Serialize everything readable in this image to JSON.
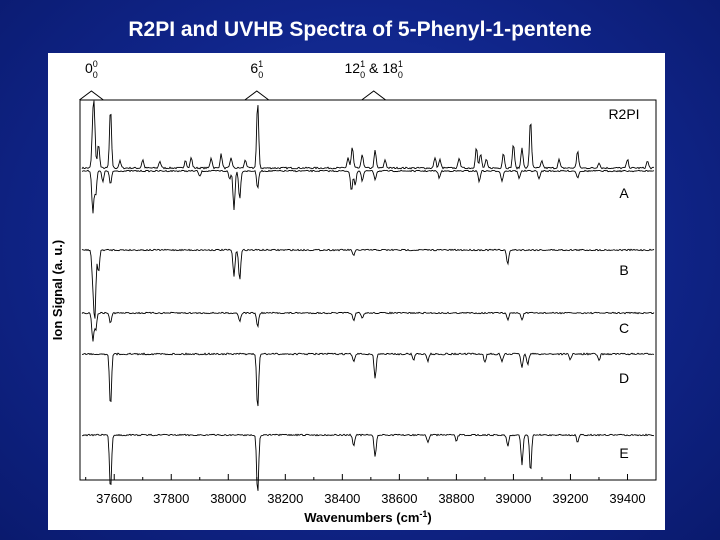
{
  "title": "R2PI and UVHB Spectra of 5-Phenyl-1-pentene",
  "colors": {
    "background": "#10258a",
    "title_text": "#ffffff",
    "trace": "#000000",
    "panel": "#ffffff"
  },
  "chart_data": {
    "type": "line",
    "title": "R2PI and UVHB Spectra of 5-Phenyl-1-pentene",
    "xlabel": "Wavenumbers (cm",
    "xlabel_sup": "-1",
    "xlabel_close": ")",
    "ylabel": "Ion Signal (a. u.)",
    "xlim": [
      37480,
      39500
    ],
    "x_ticks": [
      37600,
      37800,
      38000,
      38200,
      38400,
      38600,
      38800,
      39000,
      39200,
      39400
    ],
    "grid": false,
    "annotations": [
      {
        "main": "0",
        "sup": "0",
        "sub": "0",
        "x": 37520
      },
      {
        "main": "6",
        "sup": "1",
        "sub": "0",
        "x": 38100
      },
      {
        "main": "12",
        "sup": "1",
        "sub": "0",
        "text2": " & 18",
        "sup2": "1",
        "sub2": "0",
        "x": 38510
      }
    ],
    "series": [
      {
        "name": "R2PI",
        "direction": "up",
        "noise": 0.012,
        "peaks": [
          [
            37525,
            0.55
          ],
          [
            37530,
            0.7
          ],
          [
            37545,
            0.35
          ],
          [
            37587,
            0.85
          ],
          [
            37620,
            0.1
          ],
          [
            37700,
            0.12
          ],
          [
            37760,
            0.1
          ],
          [
            37850,
            0.12
          ],
          [
            37870,
            0.15
          ],
          [
            37940,
            0.15
          ],
          [
            37975,
            0.2
          ],
          [
            38010,
            0.15
          ],
          [
            38060,
            0.12
          ],
          [
            38103,
            0.95
          ],
          [
            38420,
            0.15
          ],
          [
            38435,
            0.3
          ],
          [
            38470,
            0.2
          ],
          [
            38515,
            0.25
          ],
          [
            38550,
            0.12
          ],
          [
            38725,
            0.15
          ],
          [
            38742,
            0.12
          ],
          [
            38810,
            0.15
          ],
          [
            38870,
            0.3
          ],
          [
            38885,
            0.2
          ],
          [
            38905,
            0.12
          ],
          [
            38965,
            0.22
          ],
          [
            39000,
            0.35
          ],
          [
            39030,
            0.3
          ],
          [
            39060,
            0.7
          ],
          [
            39100,
            0.1
          ],
          [
            39160,
            0.12
          ],
          [
            39225,
            0.25
          ],
          [
            39300,
            0.08
          ],
          [
            39400,
            0.12
          ],
          [
            39470,
            0.1
          ]
        ]
      },
      {
        "name": "A",
        "direction": "down",
        "noise": 0.01,
        "peaks": [
          [
            37525,
            0.6
          ],
          [
            37535,
            0.35
          ],
          [
            37560,
            0.15
          ],
          [
            37587,
            0.2
          ],
          [
            37900,
            0.08
          ],
          [
            38005,
            0.12
          ],
          [
            38020,
            0.55
          ],
          [
            38040,
            0.4
          ],
          [
            38103,
            0.25
          ],
          [
            38432,
            0.3
          ],
          [
            38445,
            0.2
          ],
          [
            38470,
            0.15
          ],
          [
            38515,
            0.12
          ],
          [
            38740,
            0.1
          ],
          [
            38880,
            0.15
          ],
          [
            38960,
            0.15
          ],
          [
            39020,
            0.1
          ],
          [
            39090,
            0.12
          ],
          [
            39225,
            0.1
          ]
        ]
      },
      {
        "name": "B",
        "direction": "down",
        "noise": 0.01,
        "peaks": [
          [
            37525,
            0.4
          ],
          [
            37532,
            0.9
          ],
          [
            37545,
            0.3
          ],
          [
            38020,
            0.35
          ],
          [
            38040,
            0.4
          ],
          [
            38440,
            0.08
          ],
          [
            38980,
            0.2
          ]
        ]
      },
      {
        "name": "C",
        "direction": "down",
        "noise": 0.01,
        "peaks": [
          [
            37525,
            0.4
          ],
          [
            37535,
            0.25
          ],
          [
            37587,
            0.15
          ],
          [
            38040,
            0.12
          ],
          [
            38103,
            0.2
          ],
          [
            38440,
            0.12
          ],
          [
            38470,
            0.08
          ],
          [
            38980,
            0.1
          ],
          [
            39030,
            0.1
          ]
        ]
      },
      {
        "name": "D",
        "direction": "down",
        "noise": 0.012,
        "peaks": [
          [
            37587,
            0.75
          ],
          [
            38103,
            0.8
          ],
          [
            38440,
            0.12
          ],
          [
            38515,
            0.35
          ],
          [
            38650,
            0.08
          ],
          [
            38700,
            0.1
          ],
          [
            38900,
            0.12
          ],
          [
            38960,
            0.12
          ],
          [
            39030,
            0.2
          ],
          [
            39050,
            0.15
          ],
          [
            39200,
            0.08
          ],
          [
            39300,
            0.1
          ]
        ]
      },
      {
        "name": "E",
        "direction": "down",
        "noise": 0.01,
        "peaks": [
          [
            37587,
            0.75
          ],
          [
            38103,
            0.8
          ],
          [
            38440,
            0.15
          ],
          [
            38515,
            0.3
          ],
          [
            38700,
            0.1
          ],
          [
            38800,
            0.08
          ],
          [
            38980,
            0.15
          ],
          [
            39030,
            0.4
          ],
          [
            39060,
            0.5
          ],
          [
            39225,
            0.1
          ]
        ]
      }
    ]
  }
}
